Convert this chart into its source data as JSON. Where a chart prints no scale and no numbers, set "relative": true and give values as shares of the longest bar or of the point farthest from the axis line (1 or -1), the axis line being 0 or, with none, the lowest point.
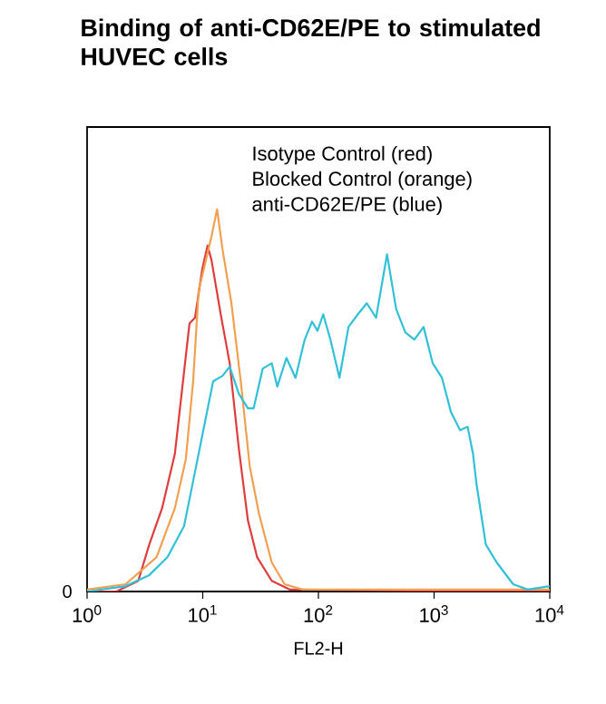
{
  "chart_data": {
    "type": "line",
    "title": "Binding of anti-CD62E/PE to stimulated HUVEC cells",
    "xlabel": "FL2-H",
    "relative": true,
    "log": "x",
    "xlim": [
      1,
      10000
    ],
    "xticks": [
      {
        "value": 1,
        "label": "10$^{0}$"
      },
      {
        "value": 10,
        "label": "10$^{1}$"
      },
      {
        "value": 100,
        "label": "10$^{2}$"
      },
      {
        "value": 1000,
        "label": "10$^{3}$"
      },
      {
        "value": 10000,
        "label": "10$^{4}$"
      }
    ],
    "annotations": [
      "Isotype Control   (red)",
      "Blocked Control  (orange)",
      "anti-CD62E/PE   (blue)",
      "0"
    ],
    "series": [
      {
        "color": "#e03c3c",
        "x": [
          1,
          1.79,
          2.77,
          3.45,
          4.45,
          5.74,
          6.4,
          7.68,
          8.57,
          9.91,
          11.0,
          11.9,
          14.3,
          17.1,
          20.5,
          24.6,
          29.5,
          39.5,
          56.9,
          10000
        ],
        "values": [
          0,
          0,
          0.028,
          0.123,
          0.218,
          0.36,
          0.488,
          0.701,
          0.716,
          0.844,
          0.905,
          0.867,
          0.725,
          0.597,
          0.374,
          0.185,
          0.09,
          0.028,
          0.005,
          0
        ]
      },
      {
        "color": "#f0a050",
        "x": [
          1,
          2.15,
          3.99,
          5.74,
          7.14,
          8.26,
          9.21,
          10.3,
          11.9,
          13.3,
          14.8,
          17.7,
          21.3,
          25.5,
          30.6,
          39.5,
          51.0,
          73.4,
          10000
        ],
        "values": [
          0.005,
          0.019,
          0.09,
          0.218,
          0.346,
          0.55,
          0.787,
          0.848,
          0.929,
          1.0,
          0.896,
          0.754,
          0.55,
          0.327,
          0.204,
          0.076,
          0.019,
          0.005,
          0.005
        ]
      },
      {
        "color": "#30c0d8",
        "x": [
          1,
          2.15,
          3.45,
          4.96,
          6.89,
          8.57,
          9.91,
          12.3,
          14.8,
          17.1,
          20.5,
          24.6,
          27.5,
          33.0,
          39.5,
          44.1,
          52.9,
          63.4,
          76.1,
          88.1,
          98.2,
          110,
          127,
          152,
          182,
          219,
          262,
          315,
          392,
          470,
          564,
          676,
          811,
          973,
          1170,
          1400,
          1680,
          1950,
          2170,
          2330,
          2800,
          3480,
          4830,
          6460,
          10000
        ],
        "values": [
          0,
          0.014,
          0.043,
          0.09,
          0.171,
          0.313,
          0.408,
          0.55,
          0.564,
          0.588,
          0.517,
          0.479,
          0.479,
          0.583,
          0.597,
          0.536,
          0.611,
          0.559,
          0.659,
          0.706,
          0.682,
          0.725,
          0.659,
          0.559,
          0.692,
          0.725,
          0.754,
          0.716,
          0.882,
          0.739,
          0.678,
          0.659,
          0.692,
          0.597,
          0.559,
          0.469,
          0.422,
          0.431,
          0.36,
          0.28,
          0.123,
          0.076,
          0.019,
          0.005,
          0.014
        ]
      }
    ]
  }
}
